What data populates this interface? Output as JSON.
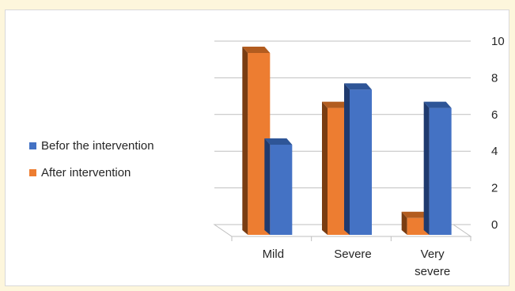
{
  "chart_data": {
    "type": "bar",
    "categories": [
      [
        "Mild"
      ],
      [
        "Severe"
      ],
      [
        "Very",
        "severe"
      ]
    ],
    "series": [
      {
        "name": "After intervention",
        "values": [
          10,
          7,
          1
        ],
        "color": "#ed7d31",
        "side_color": "#7a3d12",
        "top_color": "#b25c1f"
      },
      {
        "name": "Befor the intervention",
        "values": [
          5,
          8,
          7
        ],
        "color": "#4472c4",
        "side_color": "#1f3a6e",
        "top_color": "#2e5597"
      }
    ],
    "legend_order": [
      "Befor the intervention",
      "After intervention"
    ],
    "y_ticks": [
      0,
      2,
      4,
      6,
      8,
      10
    ],
    "ylim": [
      0,
      10
    ],
    "y_axis_position": "right",
    "legend_position": "left",
    "grid": true,
    "style": "3d-column"
  }
}
